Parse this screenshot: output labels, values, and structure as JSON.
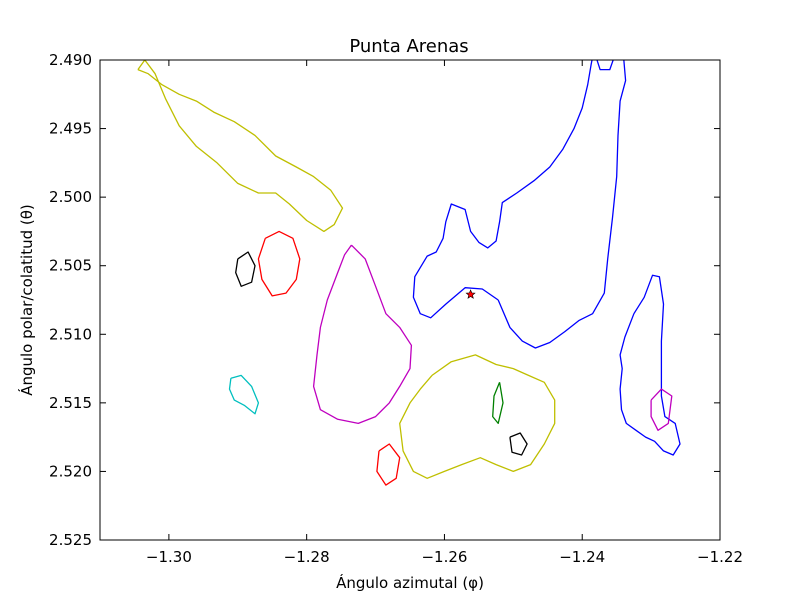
{
  "chart_data": {
    "type": "line",
    "title": "Punta Arenas",
    "xlabel": "Ángulo azimutal (φ)",
    "ylabel": "Ángulo polar/colatitud (θ)",
    "xlim": [
      -1.31,
      -1.22
    ],
    "ylim": [
      2.525,
      2.49
    ],
    "y_inverted": true,
    "grid": false,
    "x_ticks": [
      -1.3,
      -1.28,
      -1.26,
      -1.24,
      -1.22
    ],
    "x_tick_labels": [
      "−1.30",
      "−1.28",
      "−1.26",
      "−1.24",
      "−1.22"
    ],
    "y_ticks": [
      2.49,
      2.495,
      2.5,
      2.505,
      2.51,
      2.515,
      2.52,
      2.525
    ],
    "y_tick_labels": [
      "2.490",
      "2.495",
      "2.500",
      "2.505",
      "2.510",
      "2.515",
      "2.520",
      "2.525"
    ],
    "colors": {
      "blue": "#0000ff",
      "yellow_green": "#bfbf00",
      "magenta": "#bf00bf",
      "red": "#ff0000",
      "cyan": "#00bfbf",
      "green": "#008000",
      "black": "#000000"
    },
    "series": [
      {
        "color": "#0000ff",
        "points": [
          [
            -1.2522,
            2.5075
          ],
          [
            -1.2545,
            2.5067
          ],
          [
            -1.257,
            2.5066
          ],
          [
            -1.2598,
            2.5078
          ],
          [
            -1.262,
            2.5088
          ],
          [
            -1.2635,
            2.5085
          ],
          [
            -1.2645,
            2.5073
          ],
          [
            -1.2643,
            2.5058
          ],
          [
            -1.2625,
            2.5043
          ],
          [
            -1.2612,
            2.504
          ],
          [
            -1.2602,
            2.503
          ],
          [
            -1.2598,
            2.5018
          ],
          [
            -1.259,
            2.5005
          ],
          [
            -1.257,
            2.5009
          ],
          [
            -1.2562,
            2.5025
          ],
          [
            -1.255,
            2.5033
          ],
          [
            -1.2537,
            2.5037
          ],
          [
            -1.2525,
            2.5032
          ],
          [
            -1.252,
            2.5018
          ],
          [
            -1.2516,
            2.5004
          ],
          [
            -1.2495,
            2.4997
          ],
          [
            -1.247,
            2.4988
          ],
          [
            -1.2447,
            2.4978
          ],
          [
            -1.2428,
            2.4965
          ],
          [
            -1.2412,
            2.495
          ],
          [
            -1.24,
            2.4935
          ],
          [
            -1.2392,
            2.4918
          ],
          [
            -1.2387,
            2.4903
          ],
          [
            -1.2383,
            2.4893
          ],
          [
            -1.2374,
            2.4907
          ],
          [
            -1.236,
            2.4907
          ],
          [
            -1.2353,
            2.4897
          ],
          [
            -1.234,
            2.4898
          ],
          [
            -1.2337,
            2.4915
          ],
          [
            -1.2345,
            2.493
          ],
          [
            -1.2348,
            2.4955
          ],
          [
            -1.235,
            2.4985
          ],
          [
            -1.2356,
            2.5015
          ],
          [
            -1.2363,
            2.5045
          ],
          [
            -1.2368,
            2.507
          ],
          [
            -1.2385,
            2.5085
          ],
          [
            -1.2405,
            2.509
          ],
          [
            -1.2425,
            2.5098
          ],
          [
            -1.2447,
            2.5106
          ],
          [
            -1.2468,
            2.511
          ],
          [
            -1.2487,
            2.5105
          ],
          [
            -1.2505,
            2.5095
          ],
          [
            -1.2522,
            2.5075
          ]
        ]
      },
      {
        "color": "#0000ff",
        "points": [
          [
            -1.2325,
            2.5085
          ],
          [
            -1.231,
            2.5073
          ],
          [
            -1.2298,
            2.5057
          ],
          [
            -1.2288,
            2.5058
          ],
          [
            -1.2282,
            2.5078
          ],
          [
            -1.2285,
            2.5105
          ],
          [
            -1.2285,
            2.5125
          ],
          [
            -1.2285,
            2.5145
          ],
          [
            -1.228,
            2.516
          ],
          [
            -1.2265,
            2.5165
          ],
          [
            -1.2258,
            2.518
          ],
          [
            -1.2268,
            2.5188
          ],
          [
            -1.2282,
            2.5185
          ],
          [
            -1.2295,
            2.5178
          ],
          [
            -1.2308,
            2.5175
          ],
          [
            -1.2322,
            2.517
          ],
          [
            -1.2336,
            2.5165
          ],
          [
            -1.2343,
            2.5155
          ],
          [
            -1.2345,
            2.514
          ],
          [
            -1.2342,
            2.5125
          ],
          [
            -1.2345,
            2.5115
          ],
          [
            -1.2338,
            2.5102
          ],
          [
            -1.2325,
            2.5085
          ]
        ]
      },
      {
        "color": "#bfbf00",
        "points": [
          [
            -1.3045,
            2.4907
          ],
          [
            -1.3035,
            2.49
          ],
          [
            -1.302,
            2.491
          ],
          [
            -1.3005,
            2.4928
          ],
          [
            -1.2985,
            2.4948
          ],
          [
            -1.296,
            2.4963
          ],
          [
            -1.293,
            2.4975
          ],
          [
            -1.29,
            2.499
          ],
          [
            -1.287,
            2.4997
          ],
          [
            -1.2845,
            2.4997
          ],
          [
            -1.2825,
            2.5005
          ],
          [
            -1.28,
            2.5017
          ],
          [
            -1.2775,
            2.5025
          ],
          [
            -1.276,
            2.502
          ],
          [
            -1.2748,
            2.5008
          ],
          [
            -1.2765,
            2.4995
          ],
          [
            -1.279,
            2.4985
          ],
          [
            -1.2815,
            2.4978
          ],
          [
            -1.2845,
            2.497
          ],
          [
            -1.2875,
            2.4955
          ],
          [
            -1.2905,
            2.4945
          ],
          [
            -1.2935,
            2.4938
          ],
          [
            -1.296,
            2.493
          ],
          [
            -1.2985,
            2.4925
          ],
          [
            -1.301,
            2.4918
          ],
          [
            -1.303,
            2.491
          ],
          [
            -1.3045,
            2.4907
          ]
        ]
      },
      {
        "color": "#bfbf00",
        "points": [
          [
            -1.2618,
            2.513
          ],
          [
            -1.259,
            2.512
          ],
          [
            -1.2555,
            2.5115
          ],
          [
            -1.2525,
            2.5122
          ],
          [
            -1.25,
            2.5125
          ],
          [
            -1.2478,
            2.513
          ],
          [
            -1.2455,
            2.5135
          ],
          [
            -1.244,
            2.5148
          ],
          [
            -1.244,
            2.5165
          ],
          [
            -1.2455,
            2.518
          ],
          [
            -1.2475,
            2.5195
          ],
          [
            -1.25,
            2.52
          ],
          [
            -1.2525,
            2.5195
          ],
          [
            -1.2548,
            2.519
          ],
          [
            -1.2575,
            2.5195
          ],
          [
            -1.26,
            2.52
          ],
          [
            -1.2625,
            2.5205
          ],
          [
            -1.2645,
            2.52
          ],
          [
            -1.266,
            2.5185
          ],
          [
            -1.2665,
            2.5165
          ],
          [
            -1.265,
            2.515
          ],
          [
            -1.2635,
            2.514
          ],
          [
            -1.2618,
            2.513
          ]
        ]
      },
      {
        "color": "#bf00bf",
        "points": [
          [
            -1.2735,
            2.5035
          ],
          [
            -1.2715,
            2.5045
          ],
          [
            -1.27,
            2.5065
          ],
          [
            -1.2685,
            2.5085
          ],
          [
            -1.2665,
            2.5095
          ],
          [
            -1.2648,
            2.5108
          ],
          [
            -1.265,
            2.5125
          ],
          [
            -1.2665,
            2.5138
          ],
          [
            -1.268,
            2.515
          ],
          [
            -1.27,
            2.516
          ],
          [
            -1.2725,
            2.5165
          ],
          [
            -1.2755,
            2.5162
          ],
          [
            -1.278,
            2.5155
          ],
          [
            -1.279,
            2.5138
          ],
          [
            -1.2785,
            2.5115
          ],
          [
            -1.278,
            2.5095
          ],
          [
            -1.277,
            2.5075
          ],
          [
            -1.2755,
            2.5055
          ],
          [
            -1.2745,
            2.5042
          ],
          [
            -1.2735,
            2.5035
          ]
        ]
      },
      {
        "color": "#bf00bf",
        "points": [
          [
            -1.23,
            2.5148
          ],
          [
            -1.2285,
            2.514
          ],
          [
            -1.227,
            2.5145
          ],
          [
            -1.2275,
            2.5165
          ],
          [
            -1.229,
            2.517
          ],
          [
            -1.23,
            2.516
          ],
          [
            -1.23,
            2.5148
          ]
        ]
      },
      {
        "color": "#ff0000",
        "points": [
          [
            -1.286,
            2.503
          ],
          [
            -1.284,
            2.5025
          ],
          [
            -1.282,
            2.503
          ],
          [
            -1.281,
            2.5045
          ],
          [
            -1.2815,
            2.506
          ],
          [
            -1.283,
            2.507
          ],
          [
            -1.285,
            2.5072
          ],
          [
            -1.2865,
            2.506
          ],
          [
            -1.287,
            2.5045
          ],
          [
            -1.286,
            2.503
          ]
        ]
      },
      {
        "color": "#ff0000",
        "points": [
          [
            -1.2695,
            2.5185
          ],
          [
            -1.268,
            2.518
          ],
          [
            -1.2665,
            2.519
          ],
          [
            -1.267,
            2.5205
          ],
          [
            -1.2685,
            2.521
          ],
          [
            -1.2698,
            2.52
          ],
          [
            -1.2695,
            2.5185
          ]
        ]
      },
      {
        "color": "#00bfbf",
        "points": [
          [
            -1.291,
            2.5132
          ],
          [
            -1.2895,
            2.513
          ],
          [
            -1.288,
            2.5138
          ],
          [
            -1.287,
            2.515
          ],
          [
            -1.2875,
            2.5158
          ],
          [
            -1.289,
            2.5152
          ],
          [
            -1.2905,
            2.5148
          ],
          [
            -1.2912,
            2.514
          ],
          [
            -1.291,
            2.5132
          ]
        ]
      },
      {
        "color": "#008000",
        "points": [
          [
            -1.252,
            2.5135
          ],
          [
            -1.2515,
            2.515
          ],
          [
            -1.2522,
            2.5165
          ],
          [
            -1.253,
            2.516
          ],
          [
            -1.2528,
            2.5145
          ],
          [
            -1.252,
            2.5135
          ]
        ]
      },
      {
        "color": "#000000",
        "points": [
          [
            -1.29,
            2.5045
          ],
          [
            -1.2885,
            2.504
          ],
          [
            -1.2875,
            2.505
          ],
          [
            -1.288,
            2.5062
          ],
          [
            -1.2895,
            2.5065
          ],
          [
            -1.2903,
            2.5055
          ],
          [
            -1.29,
            2.5045
          ]
        ]
      },
      {
        "color": "#000000",
        "points": [
          [
            -1.2505,
            2.5175
          ],
          [
            -1.249,
            2.5172
          ],
          [
            -1.248,
            2.518
          ],
          [
            -1.2488,
            2.5188
          ],
          [
            -1.2502,
            2.5186
          ],
          [
            -1.2505,
            2.5175
          ]
        ]
      }
    ],
    "markers": [
      {
        "symbol": "star",
        "color": "#ff0000",
        "x": -1.2562,
        "y": 2.5071
      }
    ]
  }
}
